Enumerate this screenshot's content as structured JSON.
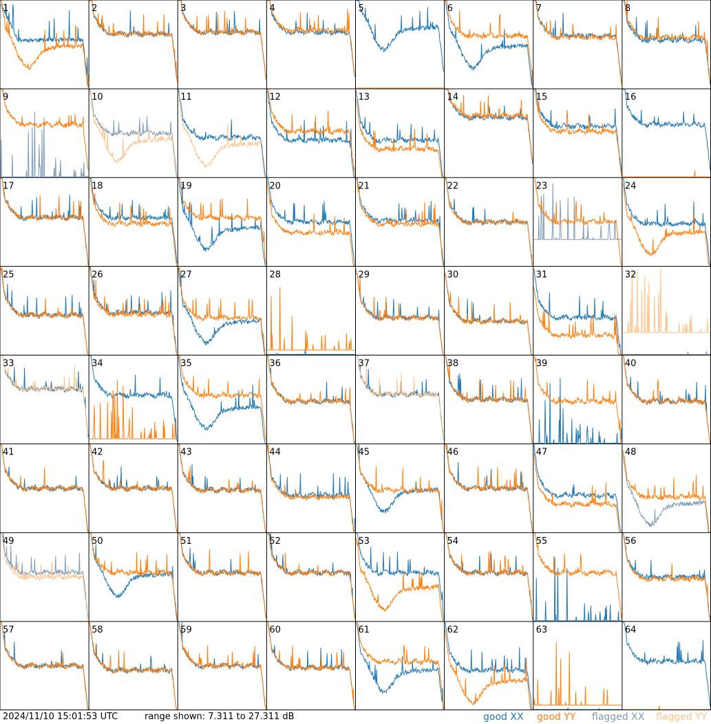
{
  "footer": {
    "timestamp": "2024/11/10 15:01:53 UTC",
    "range_text": "range shown: 7.311 to 27.311 dB"
  },
  "legend": {
    "good_xx": "good XX",
    "good_yy": "good YY",
    "flagged_xx": "flagged XX",
    "flagged_yy": "flagged YY"
  },
  "colors": {
    "good_xx": "#1f77b4",
    "good_yy": "#ff7f0e",
    "flagged_xx": "#7f9bb8",
    "flagged_yy": "#ffc38c",
    "grid_line": "#000000"
  },
  "chart_data": {
    "type": "line",
    "grid": "8x8",
    "y_unit": "dB",
    "ylim": [
      7.311,
      27.311
    ],
    "x_normalized": true,
    "panels": [
      {
        "id": "1",
        "xx": {
          "state": "good",
          "shape": "mid",
          "level": 0.55
        },
        "yy": {
          "state": "good",
          "shape": "dip",
          "level": 0.45
        }
      },
      {
        "id": "2",
        "xx": {
          "state": "good",
          "shape": "flat",
          "level": 0.62
        },
        "yy": {
          "state": "good",
          "shape": "flat",
          "level": 0.62
        }
      },
      {
        "id": "3",
        "xx": {
          "state": "good",
          "shape": "flat",
          "level": 0.64
        },
        "yy": {
          "state": "good",
          "shape": "flat",
          "level": 0.64
        }
      },
      {
        "id": "4",
        "xx": {
          "state": "good",
          "shape": "flat",
          "level": 0.64
        },
        "yy": {
          "state": "good",
          "shape": "flat",
          "level": 0.66
        }
      },
      {
        "id": "5",
        "xx": {
          "state": "good",
          "shape": "dip",
          "level": 0.66
        },
        "yy": {
          "state": "good",
          "shape": "dead",
          "level": 0.0
        }
      },
      {
        "id": "6",
        "xx": {
          "state": "good",
          "shape": "dip",
          "level": 0.45
        },
        "yy": {
          "state": "good",
          "shape": "flat",
          "level": 0.6
        }
      },
      {
        "id": "7",
        "xx": {
          "state": "good",
          "shape": "flat",
          "level": 0.6
        },
        "yy": {
          "state": "good",
          "shape": "flat",
          "level": 0.58
        }
      },
      {
        "id": "8",
        "xx": {
          "state": "good",
          "shape": "flat",
          "level": 0.55
        },
        "yy": {
          "state": "good",
          "shape": "flat",
          "level": 0.58
        }
      },
      {
        "id": "9",
        "xx": {
          "state": "flagged",
          "shape": "spiky",
          "level": 0.0
        },
        "yy": {
          "state": "good",
          "shape": "flat",
          "level": 0.6
        }
      },
      {
        "id": "10",
        "xx": {
          "state": "flagged",
          "shape": "flat",
          "level": 0.5
        },
        "yy": {
          "state": "flagged",
          "shape": "dip",
          "level": 0.4
        }
      },
      {
        "id": "11",
        "xx": {
          "state": "good",
          "shape": "flat",
          "level": 0.45
        },
        "yy": {
          "state": "flagged",
          "shape": "dip",
          "level": 0.35
        }
      },
      {
        "id": "12",
        "xx": {
          "state": "good",
          "shape": "flat",
          "level": 0.42
        },
        "yy": {
          "state": "good",
          "shape": "flat",
          "level": 0.52
        }
      },
      {
        "id": "13",
        "xx": {
          "state": "good",
          "shape": "flat",
          "level": 0.42
        },
        "yy": {
          "state": "good",
          "shape": "flat",
          "level": 0.32
        }
      },
      {
        "id": "14",
        "xx": {
          "state": "good",
          "shape": "flat",
          "level": 0.68
        },
        "yy": {
          "state": "good",
          "shape": "flat",
          "level": 0.7
        }
      },
      {
        "id": "15",
        "xx": {
          "state": "good",
          "shape": "flat",
          "level": 0.58
        },
        "yy": {
          "state": "good",
          "shape": "flat",
          "level": 0.52
        }
      },
      {
        "id": "16",
        "xx": {
          "state": "good",
          "shape": "flat",
          "level": 0.6
        },
        "yy": {
          "state": "good",
          "shape": "dead",
          "level": 0.0
        }
      },
      {
        "id": "17",
        "xx": {
          "state": "good",
          "shape": "flat",
          "level": 0.55
        },
        "yy": {
          "state": "good",
          "shape": "flat",
          "level": 0.55
        }
      },
      {
        "id": "18",
        "xx": {
          "state": "good",
          "shape": "flat",
          "level": 0.55
        },
        "yy": {
          "state": "good",
          "shape": "flat",
          "level": 0.48
        }
      },
      {
        "id": "19",
        "xx": {
          "state": "good",
          "shape": "dip",
          "level": 0.4
        },
        "yy": {
          "state": "good",
          "shape": "flat",
          "level": 0.55
        }
      },
      {
        "id": "20",
        "xx": {
          "state": "good",
          "shape": "flat",
          "level": 0.5
        },
        "yy": {
          "state": "good",
          "shape": "flat",
          "level": 0.38
        }
      },
      {
        "id": "21",
        "xx": {
          "state": "good",
          "shape": "flat",
          "level": 0.52
        },
        "yy": {
          "state": "good",
          "shape": "flat",
          "level": 0.48
        }
      },
      {
        "id": "22",
        "xx": {
          "state": "good",
          "shape": "flat",
          "level": 0.5
        },
        "yy": {
          "state": "good",
          "shape": "flat",
          "level": 0.5
        }
      },
      {
        "id": "23",
        "xx": {
          "state": "flagged",
          "shape": "spiky",
          "level": 0.3
        },
        "yy": {
          "state": "good",
          "shape": "flat",
          "level": 0.5
        }
      },
      {
        "id": "24",
        "xx": {
          "state": "good",
          "shape": "flat",
          "level": 0.48
        },
        "yy": {
          "state": "good",
          "shape": "dip",
          "level": 0.35
        }
      },
      {
        "id": "25",
        "xx": {
          "state": "good",
          "shape": "flat",
          "level": 0.45
        },
        "yy": {
          "state": "good",
          "shape": "flat",
          "level": 0.45
        }
      },
      {
        "id": "26",
        "xx": {
          "state": "good",
          "shape": "flat",
          "level": 0.48
        },
        "yy": {
          "state": "good",
          "shape": "flat",
          "level": 0.46
        }
      },
      {
        "id": "27",
        "xx": {
          "state": "good",
          "shape": "dip",
          "level": 0.35
        },
        "yy": {
          "state": "good",
          "shape": "flat",
          "level": 0.42
        }
      },
      {
        "id": "28",
        "xx": {
          "state": "good",
          "shape": "dead",
          "level": 0.0
        },
        "yy": {
          "state": "good",
          "shape": "spiky",
          "level": 0.05
        }
      },
      {
        "id": "29",
        "xx": {
          "state": "good",
          "shape": "flat",
          "level": 0.42
        },
        "yy": {
          "state": "good",
          "shape": "flat",
          "level": 0.42
        }
      },
      {
        "id": "30",
        "xx": {
          "state": "good",
          "shape": "flat",
          "level": 0.38
        },
        "yy": {
          "state": "good",
          "shape": "flat",
          "level": 0.38
        }
      },
      {
        "id": "31",
        "xx": {
          "state": "good",
          "shape": "flat",
          "level": 0.42
        },
        "yy": {
          "state": "good",
          "shape": "flat",
          "level": 0.22
        }
      },
      {
        "id": "32",
        "xx": {
          "state": "flagged",
          "shape": "dead",
          "level": 0.0
        },
        "yy": {
          "state": "flagged",
          "shape": "spiky",
          "level": 0.25
        }
      },
      {
        "id": "33",
        "xx": {
          "state": "good",
          "shape": "flat",
          "level": 0.62
        },
        "yy": {
          "state": "flagged",
          "shape": "flat",
          "level": 0.62
        }
      },
      {
        "id": "34",
        "xx": {
          "state": "good",
          "shape": "flat",
          "level": 0.55
        },
        "yy": {
          "state": "good",
          "shape": "spiky",
          "level": 0.05
        }
      },
      {
        "id": "35",
        "xx": {
          "state": "good",
          "shape": "dip",
          "level": 0.38
        },
        "yy": {
          "state": "good",
          "shape": "flat",
          "level": 0.55
        }
      },
      {
        "id": "36",
        "xx": {
          "state": "good",
          "shape": "flat",
          "level": 0.48
        },
        "yy": {
          "state": "good",
          "shape": "flat",
          "level": 0.48
        }
      },
      {
        "id": "37",
        "xx": {
          "state": "good",
          "shape": "flat",
          "level": 0.56
        },
        "yy": {
          "state": "flagged",
          "shape": "flat",
          "level": 0.56
        }
      },
      {
        "id": "38",
        "xx": {
          "state": "good",
          "shape": "flat",
          "level": 0.5
        },
        "yy": {
          "state": "good",
          "shape": "flat",
          "level": 0.5
        }
      },
      {
        "id": "39",
        "xx": {
          "state": "good",
          "shape": "spiky",
          "level": 0.0
        },
        "yy": {
          "state": "good",
          "shape": "flat",
          "level": 0.48
        }
      },
      {
        "id": "40",
        "xx": {
          "state": "good",
          "shape": "flat",
          "level": 0.48
        },
        "yy": {
          "state": "good",
          "shape": "flat",
          "level": 0.48
        }
      },
      {
        "id": "41",
        "xx": {
          "state": "good",
          "shape": "flat",
          "level": 0.5
        },
        "yy": {
          "state": "good",
          "shape": "flat",
          "level": 0.5
        }
      },
      {
        "id": "42",
        "xx": {
          "state": "good",
          "shape": "flat",
          "level": 0.5
        },
        "yy": {
          "state": "good",
          "shape": "flat",
          "level": 0.5
        }
      },
      {
        "id": "43",
        "xx": {
          "state": "good",
          "shape": "flat",
          "level": 0.48
        },
        "yy": {
          "state": "good",
          "shape": "flat",
          "level": 0.48
        }
      },
      {
        "id": "44",
        "xx": {
          "state": "good",
          "shape": "flat",
          "level": 0.42
        },
        "yy": {
          "state": "good",
          "shape": "flat",
          "level": 0.4
        }
      },
      {
        "id": "45",
        "xx": {
          "state": "good",
          "shape": "dip",
          "level": 0.45
        },
        "yy": {
          "state": "good",
          "shape": "flat",
          "level": 0.48
        }
      },
      {
        "id": "46",
        "xx": {
          "state": "good",
          "shape": "flat",
          "level": 0.5
        },
        "yy": {
          "state": "good",
          "shape": "flat",
          "level": 0.5
        }
      },
      {
        "id": "47",
        "xx": {
          "state": "good",
          "shape": "flat",
          "level": 0.42
        },
        "yy": {
          "state": "good",
          "shape": "flat",
          "level": 0.32
        }
      },
      {
        "id": "48",
        "xx": {
          "state": "flagged",
          "shape": "dip",
          "level": 0.3
        },
        "yy": {
          "state": "good",
          "shape": "flat",
          "level": 0.4
        }
      },
      {
        "id": "49",
        "xx": {
          "state": "flagged",
          "shape": "flat",
          "level": 0.55
        },
        "yy": {
          "state": "flagged",
          "shape": "flat",
          "level": 0.5
        }
      },
      {
        "id": "50",
        "xx": {
          "state": "good",
          "shape": "dip",
          "level": 0.5
        },
        "yy": {
          "state": "good",
          "shape": "flat",
          "level": 0.55
        }
      },
      {
        "id": "51",
        "xx": {
          "state": "good",
          "shape": "flat",
          "level": 0.55
        },
        "yy": {
          "state": "good",
          "shape": "flat",
          "level": 0.55
        }
      },
      {
        "id": "52",
        "xx": {
          "state": "good",
          "shape": "flat",
          "level": 0.55
        },
        "yy": {
          "state": "good",
          "shape": "flat",
          "level": 0.55
        }
      },
      {
        "id": "53",
        "xx": {
          "state": "good",
          "shape": "flat",
          "level": 0.55
        },
        "yy": {
          "state": "good",
          "shape": "dip",
          "level": 0.35
        }
      },
      {
        "id": "54",
        "xx": {
          "state": "good",
          "shape": "flat",
          "level": 0.55
        },
        "yy": {
          "state": "good",
          "shape": "flat",
          "level": 0.55
        }
      },
      {
        "id": "55",
        "xx": {
          "state": "good",
          "shape": "spiky",
          "level": 0.0
        },
        "yy": {
          "state": "good",
          "shape": "flat",
          "level": 0.55
        }
      },
      {
        "id": "56",
        "xx": {
          "state": "good",
          "shape": "flat",
          "level": 0.5
        },
        "yy": {
          "state": "good",
          "shape": "flat",
          "level": 0.48
        }
      },
      {
        "id": "57",
        "xx": {
          "state": "good",
          "shape": "flat",
          "level": 0.5
        },
        "yy": {
          "state": "good",
          "shape": "flat",
          "level": 0.5
        }
      },
      {
        "id": "58",
        "xx": {
          "state": "good",
          "shape": "flat",
          "level": 0.45
        },
        "yy": {
          "state": "good",
          "shape": "flat",
          "level": 0.45
        }
      },
      {
        "id": "59",
        "xx": {
          "state": "good",
          "shape": "flat",
          "level": 0.5
        },
        "yy": {
          "state": "good",
          "shape": "flat",
          "level": 0.5
        }
      },
      {
        "id": "60",
        "xx": {
          "state": "good",
          "shape": "flat",
          "level": 0.48
        },
        "yy": {
          "state": "good",
          "shape": "flat",
          "level": 0.48
        }
      },
      {
        "id": "61",
        "xx": {
          "state": "good",
          "shape": "dip",
          "level": 0.42
        },
        "yy": {
          "state": "good",
          "shape": "flat",
          "level": 0.55
        }
      },
      {
        "id": "62",
        "xx": {
          "state": "good",
          "shape": "flat",
          "level": 0.45
        },
        "yy": {
          "state": "good",
          "shape": "dip",
          "level": 0.3
        }
      },
      {
        "id": "63",
        "xx": {
          "state": "good",
          "shape": "dead",
          "level": 0.0
        },
        "yy": {
          "state": "good",
          "shape": "spiky",
          "level": 0.05
        }
      },
      {
        "id": "64",
        "xx": {
          "state": "good",
          "shape": "flat",
          "level": 0.55
        },
        "yy": {
          "state": "good",
          "shape": "dead",
          "level": 0.0
        }
      }
    ]
  }
}
